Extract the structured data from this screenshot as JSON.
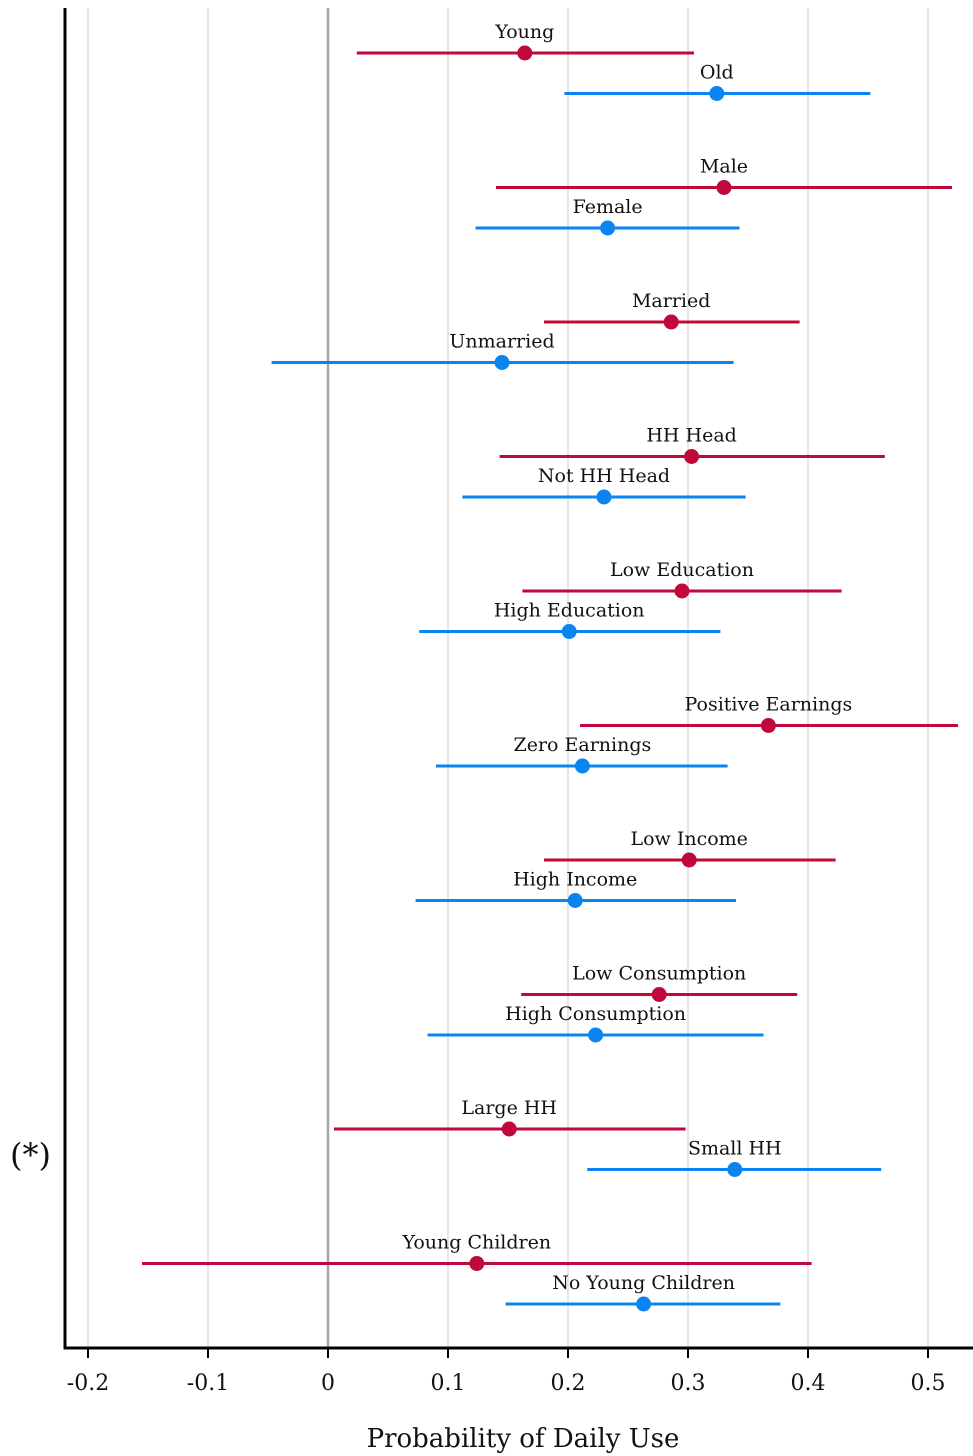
{
  "chart_data": {
    "type": "scatter",
    "xlabel": "Probability of Daily Use",
    "xlim": [
      -0.22,
      0.535
    ],
    "x_ticks": [
      -0.2,
      -0.1,
      0,
      0.1,
      0.2,
      0.3,
      0.4,
      0.5
    ],
    "x_tick_labels": [
      "-0.2",
      "-0.1",
      "0",
      "0.1",
      "0.2",
      "0.3",
      "0.4",
      "0.5"
    ],
    "grid": "vertical",
    "reference_line": 0,
    "colors": {
      "first": "#c0083a",
      "second": "#0a84f0",
      "grid": "#e6e6e6",
      "reference": "#a6a6a6"
    },
    "side_note": "(*)",
    "groups": [
      {
        "points": [
          {
            "label": "Young",
            "estimate": 0.164,
            "lower": 0.024,
            "upper": 0.305
          },
          {
            "label": "Old",
            "estimate": 0.324,
            "lower": 0.197,
            "upper": 0.452
          }
        ]
      },
      {
        "points": [
          {
            "label": "Male",
            "estimate": 0.33,
            "lower": 0.14,
            "upper": 0.52
          },
          {
            "label": "Female",
            "estimate": 0.233,
            "lower": 0.123,
            "upper": 0.343
          }
        ]
      },
      {
        "points": [
          {
            "label": "Married",
            "estimate": 0.286,
            "lower": 0.18,
            "upper": 0.393
          },
          {
            "label": "Unmarried",
            "estimate": 0.145,
            "lower": -0.047,
            "upper": 0.338
          }
        ]
      },
      {
        "points": [
          {
            "label": "HH Head",
            "estimate": 0.303,
            "lower": 0.143,
            "upper": 0.464
          },
          {
            "label": "Not HH Head",
            "estimate": 0.23,
            "lower": 0.112,
            "upper": 0.348
          }
        ]
      },
      {
        "points": [
          {
            "label": "Low Education",
            "estimate": 0.295,
            "lower": 0.162,
            "upper": 0.428
          },
          {
            "label": "High Education",
            "estimate": 0.201,
            "lower": 0.076,
            "upper": 0.327
          }
        ]
      },
      {
        "points": [
          {
            "label": "Positive Earnings",
            "estimate": 0.367,
            "lower": 0.21,
            "upper": 0.525
          },
          {
            "label": "Zero Earnings",
            "estimate": 0.212,
            "lower": 0.09,
            "upper": 0.333
          }
        ]
      },
      {
        "points": [
          {
            "label": "Low Income",
            "estimate": 0.301,
            "lower": 0.18,
            "upper": 0.423
          },
          {
            "label": "High Income",
            "estimate": 0.206,
            "lower": 0.073,
            "upper": 0.34
          }
        ]
      },
      {
        "points": [
          {
            "label": "Low Consumption",
            "estimate": 0.276,
            "lower": 0.161,
            "upper": 0.391
          },
          {
            "label": "High Consumption",
            "estimate": 0.223,
            "lower": 0.083,
            "upper": 0.363
          }
        ]
      },
      {
        "points": [
          {
            "label": "Large HH",
            "estimate": 0.151,
            "lower": 0.005,
            "upper": 0.298
          },
          {
            "label": "Small HH",
            "estimate": 0.339,
            "lower": 0.216,
            "upper": 0.461
          }
        ]
      },
      {
        "points": [
          {
            "label": "Young Children",
            "estimate": 0.124,
            "lower": -0.155,
            "upper": 0.403
          },
          {
            "label": "No Young Children",
            "estimate": 0.263,
            "lower": 0.148,
            "upper": 0.377
          }
        ]
      }
    ]
  }
}
